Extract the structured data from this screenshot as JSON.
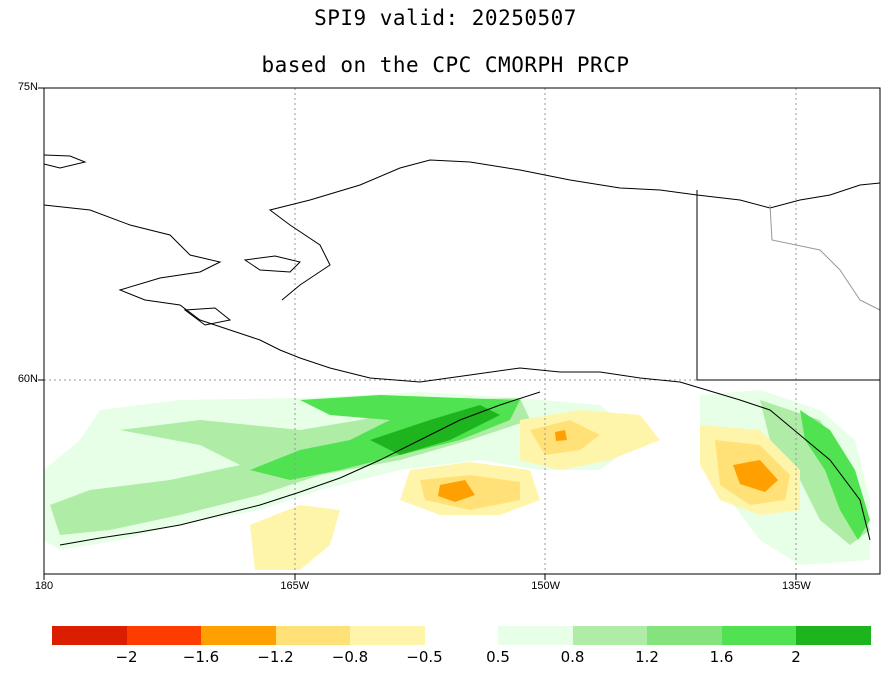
{
  "title_line1": "SPI9   valid: 20250507",
  "title_line2": "based on the CPC CMORPH PRCP",
  "lat_labels": [
    {
      "text": "75N",
      "lat": 75
    },
    {
      "text": "60N",
      "lat": 60
    }
  ],
  "lon_labels": [
    {
      "text": "180",
      "lon": -180
    },
    {
      "text": "165W",
      "lon": -165
    },
    {
      "text": "150W",
      "lon": -150
    },
    {
      "text": "135W",
      "lon": -135
    }
  ],
  "map_extent": {
    "lon_min": -180,
    "lon_max": -130,
    "lat_min": 50,
    "lat_max": 75
  },
  "colorbar": {
    "dry": [
      {
        "color": "#dc1e00"
      },
      {
        "color": "#ff3c00"
      },
      {
        "color": "#ffa000"
      },
      {
        "color": "#ffe178"
      },
      {
        "color": "#fff5aa"
      }
    ],
    "wet": [
      {
        "color": "#e6ffe6"
      },
      {
        "color": "#afeca6"
      },
      {
        "color": "#86e27c"
      },
      {
        "color": "#50e250"
      },
      {
        "color": "#1eb41e"
      }
    ],
    "dry_labels": [
      "−2",
      "−1.6",
      "−1.2",
      "−0.8",
      "−0.5"
    ],
    "wet_labels": [
      "0.5",
      "0.8",
      "1.2",
      "1.6",
      "2"
    ]
  }
}
